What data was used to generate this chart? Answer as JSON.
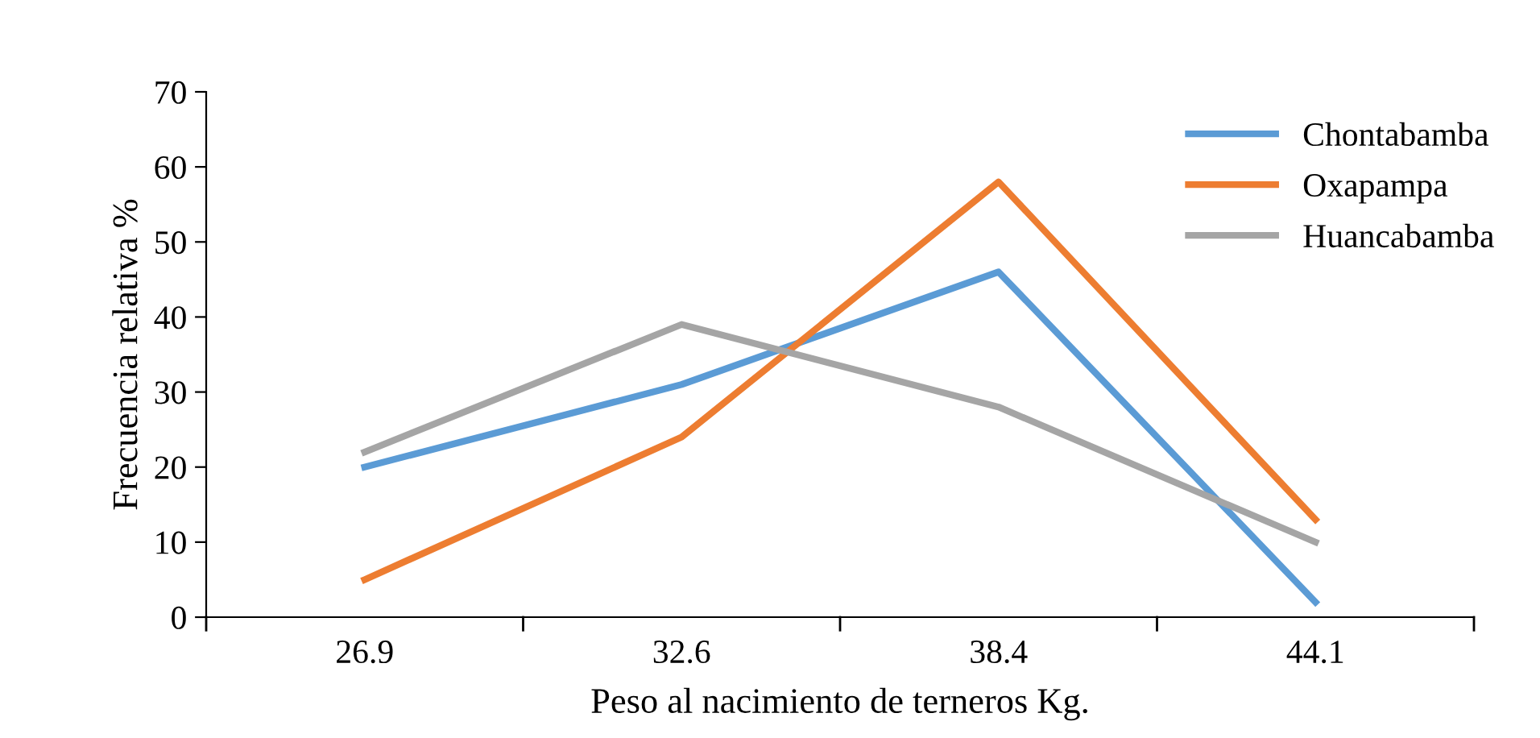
{
  "chart_data": {
    "type": "line",
    "xlabel": "Peso al nacimiento de terneros Kg.",
    "ylabel": "Frecuencia relativa %",
    "categories": [
      "26.9",
      "32.6",
      "38.4",
      "44.1"
    ],
    "series": [
      {
        "name": "Chontabamba",
        "color": "#5b9bd5",
        "values": [
          20,
          31,
          46,
          2
        ]
      },
      {
        "name": "Oxapampa",
        "color": "#ed7d31",
        "values": [
          5,
          24,
          58,
          13
        ]
      },
      {
        "name": "Huancabamba",
        "color": "#a5a5a5",
        "values": [
          22,
          39,
          28,
          10
        ]
      }
    ],
    "ylim": [
      0,
      70
    ],
    "yticks": [
      0,
      10,
      20,
      30,
      40,
      50,
      60,
      70
    ],
    "grid": false,
    "legend": "top right",
    "marker": "none",
    "line_style": "solid"
  }
}
